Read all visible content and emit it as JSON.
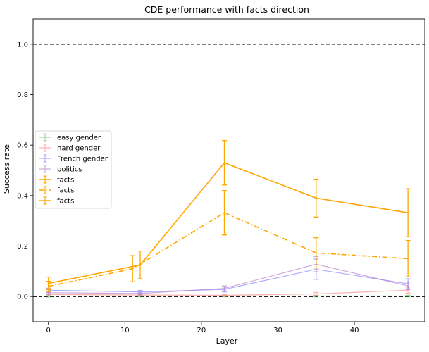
{
  "chart_data": {
    "type": "line",
    "title": "CDE performance with facts direction",
    "xlabel": "Layer",
    "ylabel": "Success rate",
    "xlim": [
      -2,
      49.2
    ],
    "ylim": [
      -0.1,
      1.1
    ],
    "xticks": [
      0,
      10,
      20,
      30,
      40
    ],
    "yticks": [
      0.0,
      0.2,
      0.4,
      0.6,
      0.8,
      1.0
    ],
    "hlines": [
      0.0,
      1.0
    ],
    "grid": false,
    "legend_position": "center-left",
    "series": [
      {
        "name": "easy gender",
        "color": "#2ca02c",
        "alpha": 0.45,
        "dash": "solid",
        "width": 1.2,
        "x": [
          0,
          12,
          23,
          35,
          47
        ],
        "y": [
          0.002,
          0.002,
          0.002,
          0.002,
          0.002
        ],
        "err": [
          0.004,
          0.003,
          0.003,
          0.003,
          0.003
        ]
      },
      {
        "name": "hard gender",
        "color": "#ff7f7f",
        "alpha": 0.6,
        "dash": "solid",
        "width": 1.2,
        "x": [
          0,
          12,
          23,
          35,
          47
        ],
        "y": [
          0.008,
          0.006,
          0.005,
          0.01,
          0.025
        ],
        "err": [
          0.006,
          0.004,
          0.004,
          0.006,
          0.012
        ]
      },
      {
        "name": "French gender",
        "color": "#6a6aff",
        "alpha": 0.55,
        "dash": "solid",
        "width": 1.2,
        "x": [
          0,
          12,
          23,
          35,
          47
        ],
        "y": [
          0.025,
          0.018,
          0.028,
          0.108,
          0.05
        ],
        "err": [
          0.008,
          0.006,
          0.01,
          0.04,
          0.02
        ]
      },
      {
        "name": "politics",
        "color": "#b072c8",
        "alpha": 0.6,
        "dash": "solid",
        "width": 1.2,
        "x": [
          0,
          12,
          23,
          35,
          47
        ],
        "y": [
          0.015,
          0.012,
          0.032,
          0.128,
          0.042
        ],
        "err": [
          0.006,
          0.005,
          0.01,
          0.03,
          0.015
        ]
      },
      {
        "name": "facts",
        "color": "#ffa500",
        "alpha": 1,
        "dash": "solid",
        "width": 1.6,
        "x": [
          0,
          12,
          23,
          35,
          47
        ],
        "y": [
          0.052,
          0.125,
          0.53,
          0.39,
          0.332
        ],
        "err": [
          0.025,
          0.055,
          0.088,
          0.075,
          0.095
        ]
      },
      {
        "name": "facts",
        "color": "#ffa500",
        "alpha": 1,
        "dash": "dashdot",
        "width": 1.6,
        "x": [
          0,
          11,
          23,
          35,
          47
        ],
        "y": [
          0.04,
          0.11,
          0.332,
          0.173,
          0.15
        ],
        "err": [
          0.02,
          0.052,
          0.088,
          0.06,
          0.072
        ]
      },
      {
        "name": "facts",
        "color": "#ffa500",
        "alpha": 1,
        "dash": "solid",
        "width": 1.6,
        "x": [],
        "y": [],
        "err": []
      }
    ]
  }
}
